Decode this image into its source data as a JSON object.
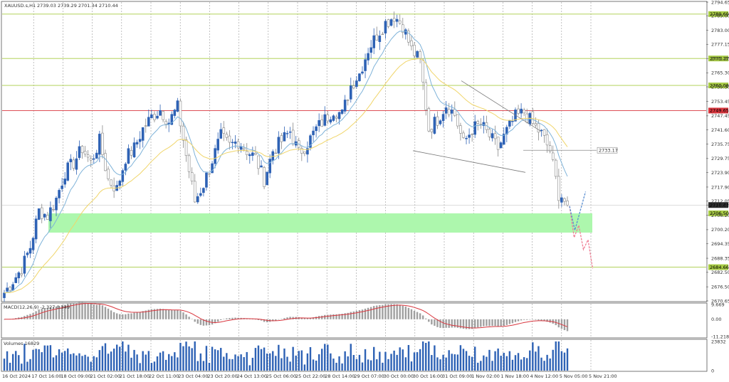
{
  "header": {
    "symbol_label": "XAUUSD.s,H1",
    "ohlc_label": "2739.03 2739.29 2701.34 2710.44"
  },
  "indicators": {
    "macd_label": "MACD(12,26,9) -2.327 0.349",
    "volume_label": "Volumes 16829"
  },
  "colors": {
    "bull": "#2e62b5",
    "bear": "#888888",
    "ma_fast": "#7fb3d9",
    "ma_slow": "#f0d56a",
    "resistance_red": "#d9363e",
    "level_green": "#a8cc45",
    "zone_fill": "#adf7ad",
    "macd_signal": "#d9363e",
    "projection_down": "#ef7f95",
    "projection_up": "#5a8fd1"
  },
  "chart_data": [
    {
      "type": "candlestick",
      "title": "XAUUSD.s,H1",
      "ylim": [
        2670.65,
        2794.65
      ],
      "y_ticks": [
        "2794.65",
        "2789.00",
        "2783.00",
        "2777.15",
        "2771.25",
        "2765.30",
        "2759.50",
        "2753.45",
        "2747.45",
        "2741.60",
        "2735.75",
        "2729.75",
        "2723.90",
        "2717.90",
        "2712.05",
        "2710.44",
        "2706.20",
        "2700.20",
        "2694.35",
        "2688.35",
        "2682.50",
        "2676.50",
        "2670.65"
      ],
      "x_ticks": [
        "16 Oct 2024",
        "17 Oct 16:00",
        "18 Oct 09:00",
        "21 Oct 02:00",
        "21 Oct 18:00",
        "22 Oct 11:00",
        "23 Oct 04:00",
        "23 Oct 20:00",
        "24 Oct 13:00",
        "25 Oct 06:00",
        "25 Oct 22:00",
        "28 Oct 14:00",
        "29 Oct 07:00",
        "30 Oct 00:00",
        "30 Oct 16:00",
        "31 Oct 09:00",
        "1 Nov 02:00",
        "1 Nov 18:00",
        "4 Nov 12:00",
        "5 Nov 05:00",
        "5 Nov 21:00"
      ],
      "close_path": [
        2674,
        2679,
        2684,
        2693,
        2708,
        2706,
        2713,
        2724,
        2728,
        2734,
        2728,
        2737,
        2721,
        2717,
        2730,
        2734,
        2742,
        2747,
        2750,
        2745,
        2751,
        2731,
        2712,
        2719,
        2729,
        2739,
        2735,
        2737,
        2733,
        2730,
        2721,
        2733,
        2737,
        2741,
        2732,
        2736,
        2742,
        2746,
        2750,
        2748,
        2760,
        2765,
        2775,
        2781,
        2786,
        2789,
        2785,
        2775,
        2770,
        2742,
        2746,
        2752,
        2748,
        2736,
        2742,
        2744,
        2739,
        2734,
        2741,
        2747,
        2749,
        2744,
        2740,
        2733,
        2715,
        2710.44
      ],
      "horizontal_levels": [
        {
          "label": "2789.69",
          "value": 2789.69,
          "color": "green"
        },
        {
          "label": "2771.27",
          "value": 2771.27,
          "color": "green"
        },
        {
          "label": "2760.08",
          "value": 2760.08,
          "color": "green"
        },
        {
          "label": "2749.65",
          "value": 2749.65,
          "color": "red"
        },
        {
          "label": "2684.66",
          "value": 2684.66,
          "color": "green"
        }
      ],
      "support_zone": {
        "label": "2706.50",
        "low": 2699.0,
        "high": 2707.0
      },
      "current_price": "2710.44",
      "side_level_label": "2733.17",
      "projections": [
        {
          "name": "down",
          "points": [
            2710,
            2697,
            2702,
            2692,
            2696,
            2684
          ]
        },
        {
          "name": "up",
          "points": [
            2710,
            2700,
            2708,
            2716
          ]
        }
      ]
    },
    {
      "type": "bar",
      "title": "MACD(12,26,9) -2.327 0.349",
      "ylim": [
        -11.218,
        9.669
      ],
      "y_ticks": [
        "9.669",
        "0.00",
        "-11.218"
      ]
    },
    {
      "type": "bar",
      "title": "Volumes 16829",
      "ylim": [
        0,
        23832
      ],
      "y_ticks": [
        "23832",
        "0"
      ]
    }
  ]
}
